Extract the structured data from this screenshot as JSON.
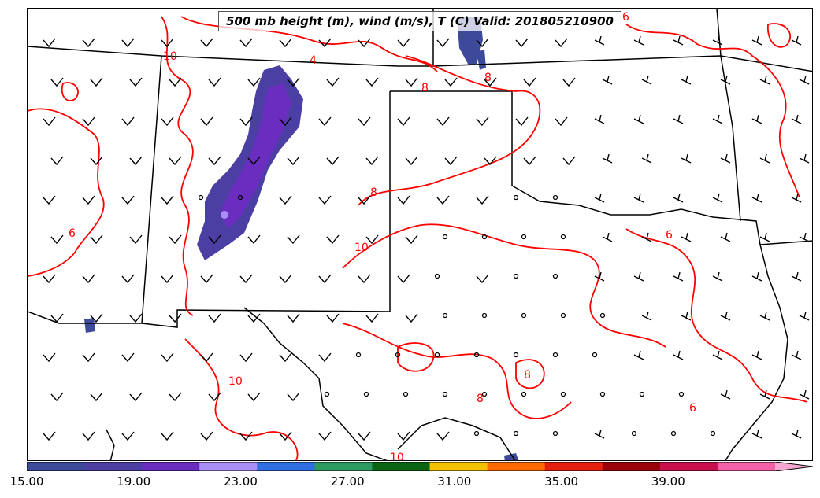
{
  "title": "500 mb height (m), wind (m/s), T (C) Valid: 201805210900",
  "colorbar": {
    "colors": [
      "#3d4a99",
      "#4b3fa4",
      "#6a2dc0",
      "#a88ef6",
      "#2f6fe0",
      "#2e9a62",
      "#0a6512",
      "#f2c100",
      "#ff6a00",
      "#e51f0f",
      "#9a000a",
      "#c8104c",
      "#f261aa",
      "#f7a8d2"
    ],
    "tick_labels": [
      "15.00",
      "19.00",
      "23.00",
      "27.00",
      "31.00",
      "35.00",
      "39.00"
    ],
    "tick_values": [
      15,
      19,
      23,
      27,
      31,
      35,
      39
    ],
    "range": [
      15,
      43
    ]
  },
  "contour_labels": [
    "10",
    "4",
    "8",
    "6",
    "8",
    "8",
    "10",
    "6",
    "10",
    "8",
    "6",
    "8",
    "6",
    "10"
  ],
  "map": {
    "contour_color": "#ff0000",
    "region": "Southern Plains / Southwest US"
  }
}
